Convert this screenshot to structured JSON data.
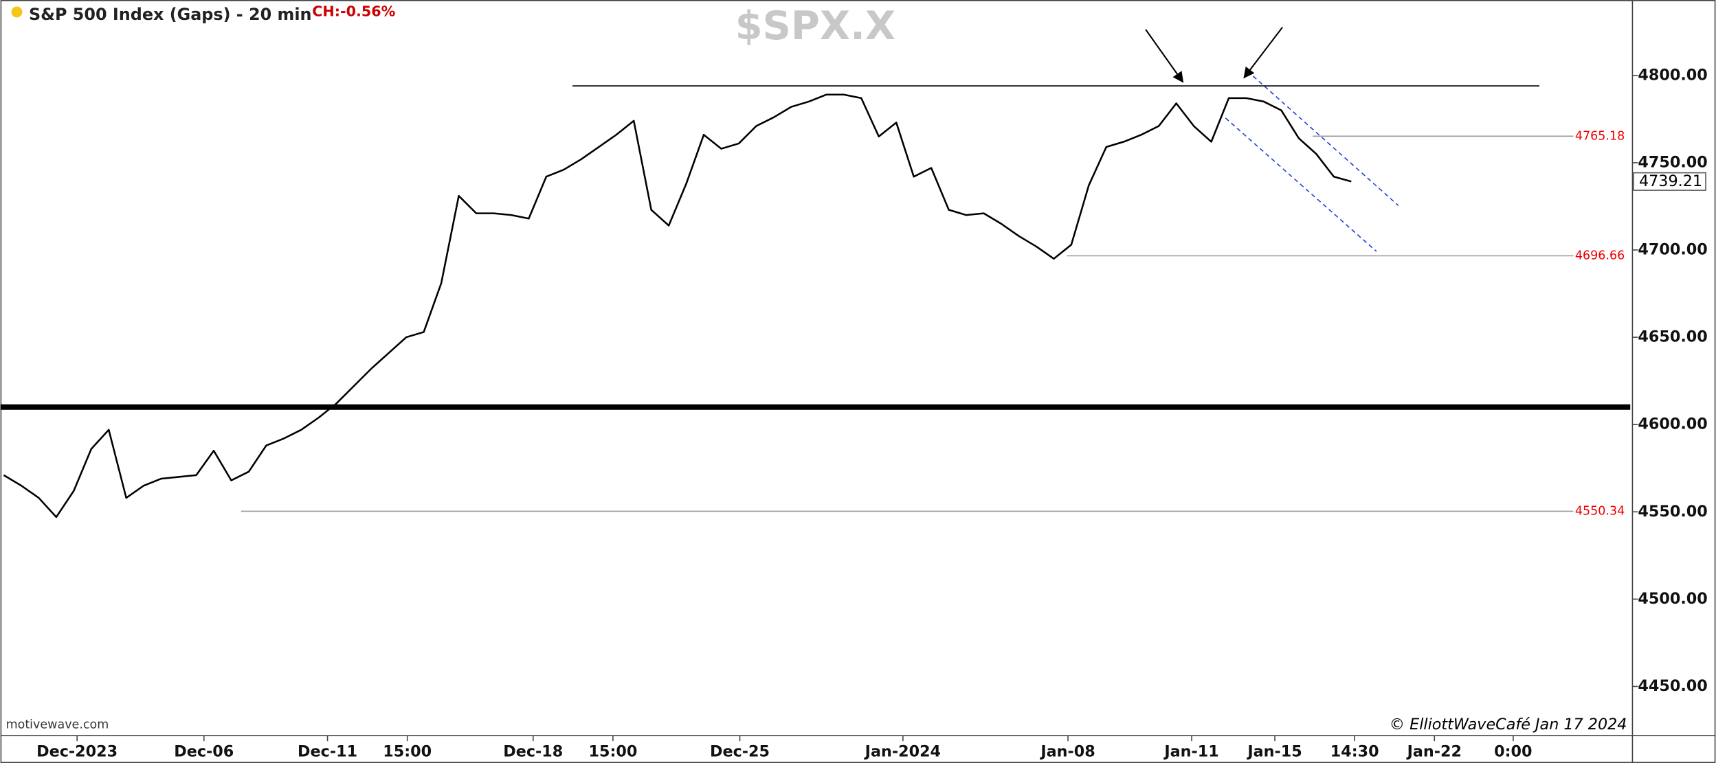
{
  "chart_data": {
    "type": "line",
    "title": "S&P 500 Index (Gaps) - 20 min",
    "change": "CH:-0.56%",
    "symbol": "$SPX.X",
    "source": "motivewave.com",
    "credit": "© ElliottWaveCafé Jan 17 2024",
    "color": "#000000",
    "values": [
      4571,
      4565,
      4558,
      4547,
      4562,
      4586,
      4597,
      4558,
      4565,
      4569,
      4570,
      4571,
      4585,
      4568,
      4573,
      4588,
      4592,
      4597,
      4604,
      4612,
      4622,
      4632,
      4641,
      4650,
      4653,
      4681,
      4731,
      4721,
      4721,
      4720,
      4718,
      4742,
      4746,
      4752,
      4759,
      4766,
      4774,
      4723,
      4714,
      4738,
      4766,
      4758,
      4761,
      4771,
      4776,
      4782,
      4785,
      4789,
      4789,
      4787,
      4765,
      4773,
      4742,
      4747,
      4723,
      4720,
      4721,
      4715,
      4708,
      4702,
      4695,
      4703,
      4737,
      4759,
      4762,
      4766,
      4771,
      4784,
      4771,
      4762,
      4787,
      4787,
      4785,
      4780,
      4764,
      4755,
      4742,
      4739.21
    ],
    "xlim": [
      -0.19,
      92.94
    ],
    "xticks": [
      {
        "value": 4.19,
        "label": "Dec-2023"
      },
      {
        "value": 11.44,
        "label": "Dec-06"
      },
      {
        "value": 18.5,
        "label": "Dec-11"
      },
      {
        "value": 23.06,
        "label": "15:00"
      },
      {
        "value": 30.25,
        "label": "Dec-18"
      },
      {
        "value": 34.81,
        "label": "15:00"
      },
      {
        "value": 42.06,
        "label": "Dec-25"
      },
      {
        "value": 51.38,
        "label": "Jan-2024"
      },
      {
        "value": 60.81,
        "label": "Jan-08"
      },
      {
        "value": 67.88,
        "label": "Jan-11"
      },
      {
        "value": 72.63,
        "label": "Jan-15"
      },
      {
        "value": 77.19,
        "label": "14:30"
      },
      {
        "value": 81.75,
        "label": "Jan-22"
      },
      {
        "value": 86.25,
        "label": "0:00"
      }
    ],
    "ylim": [
      4422.4,
      4843.2
    ],
    "yticks": [
      {
        "value": 4450,
        "label": "4450.00"
      },
      {
        "value": 4500,
        "label": "4500.00"
      },
      {
        "value": 4550,
        "label": "4550.00"
      },
      {
        "value": 4600,
        "label": "4600.00"
      },
      {
        "value": 4650,
        "label": "4650.00"
      },
      {
        "value": 4700,
        "label": "4700.00"
      },
      {
        "value": 4750,
        "label": "4750.00"
      },
      {
        "value": 4800,
        "label": "4800.00"
      }
    ],
    "support": 4610,
    "resistance": {
      "value": 4794,
      "from": 32.5,
      "to": 87.75
    },
    "levels": [
      {
        "value": 4765.18,
        "from": 74.8
      },
      {
        "value": 4696.66,
        "from": 60.75
      },
      {
        "value": 4550.34,
        "from": 13.56
      }
    ]
  }
}
